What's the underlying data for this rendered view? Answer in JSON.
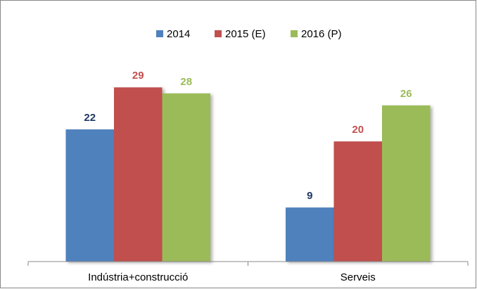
{
  "chart_data": {
    "type": "bar",
    "categories": [
      "Indústria+construcció",
      "Serveis"
    ],
    "series": [
      {
        "name": "2014",
        "color": "#4f81bd",
        "label_color": "#1f3864",
        "values": [
          22,
          9
        ]
      },
      {
        "name": "2015 (E)",
        "color": "#c0504d",
        "label_color": "#c0504d",
        "values": [
          29,
          20
        ]
      },
      {
        "name": "2016 (P)",
        "color": "#9bbb59",
        "label_color": "#9bbb59",
        "values": [
          28,
          26
        ]
      }
    ],
    "ylim": [
      0,
      35
    ],
    "legend": "top",
    "grid": false
  }
}
